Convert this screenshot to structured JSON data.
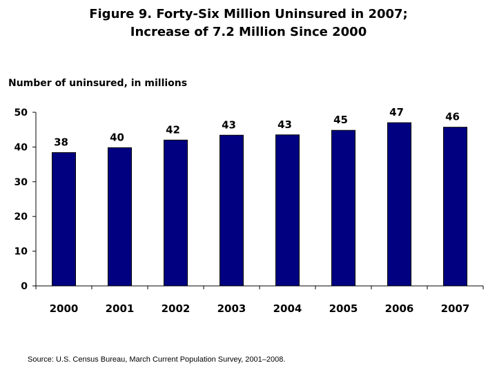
{
  "chart_data": {
    "type": "bar",
    "title_line1": "Figure 9. Forty-Six Million Uninsured in 2007;",
    "title_line2": "Increase of 7.2 Million Since 2000",
    "ylabel": "Number of uninsured, in millions",
    "xlabel": "",
    "categories": [
      "2000",
      "2001",
      "2002",
      "2003",
      "2004",
      "2005",
      "2006",
      "2007"
    ],
    "values": [
      38.4,
      39.8,
      42.0,
      43.4,
      43.5,
      44.8,
      47.0,
      45.7
    ],
    "data_labels": [
      "38",
      "40",
      "42",
      "43",
      "43",
      "45",
      "47",
      "46"
    ],
    "ylim": [
      0,
      50
    ],
    "yticks": [
      0,
      10,
      20,
      30,
      40,
      50
    ],
    "grid": false,
    "legend": "none",
    "bar_color": "#000080",
    "source": "Source: U.S. Census Bureau, March Current Population Survey, 2001–2008."
  }
}
